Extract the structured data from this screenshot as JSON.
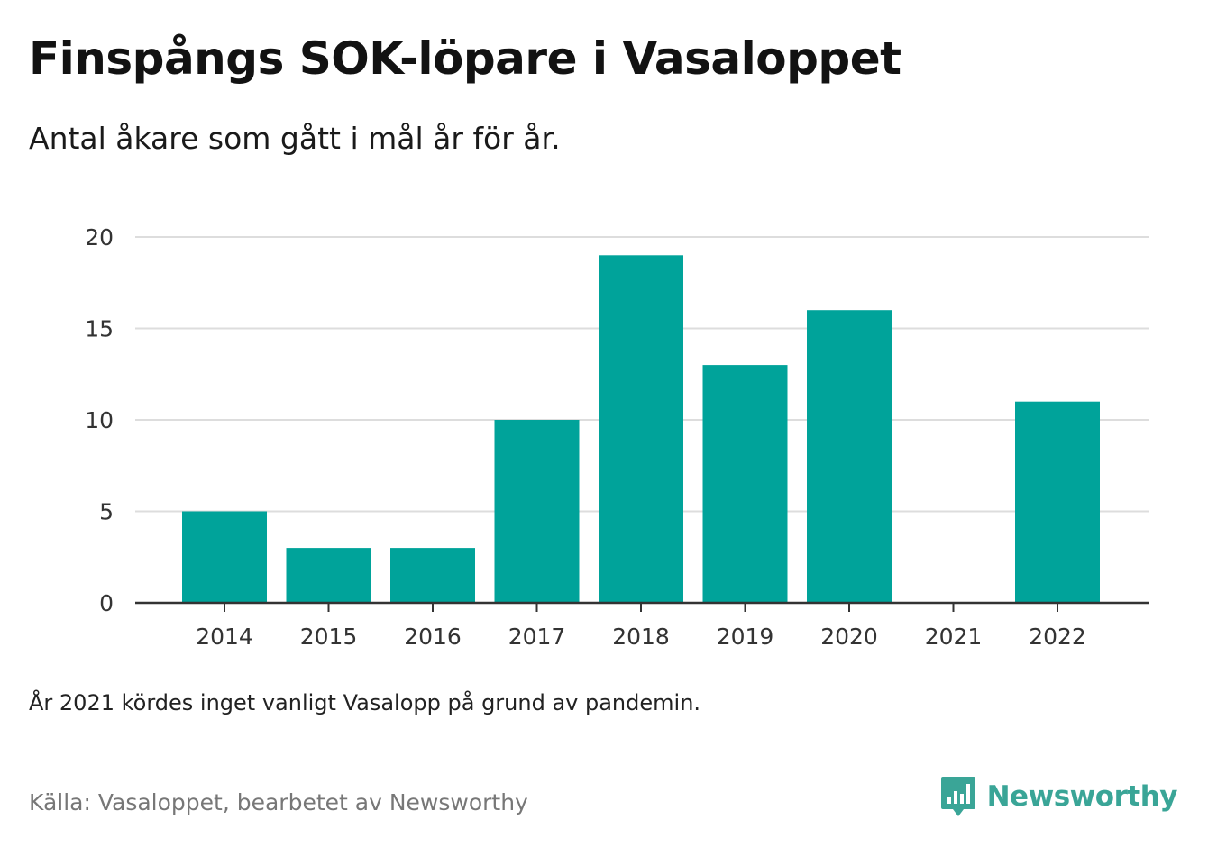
{
  "header": {
    "title": "Finspångs SOK-löpare i Vasaloppet",
    "subtitle": "Antal åkare som gått i mål år för år."
  },
  "footer": {
    "note": "År 2021 kördes inget vanligt Vasalopp på grund av pandemin.",
    "source": "Källa: Vasaloppet, bearbetet av Newsworthy",
    "brand": "Newsworthy",
    "brand_icon": "bar-chart-speech-bubble-icon"
  },
  "colors": {
    "bar": "#00a39a",
    "brand": "#3aa597",
    "grid": "#dddddd",
    "axis": "#333333",
    "tick_label": "#333333"
  },
  "chart_data": {
    "type": "bar",
    "categories": [
      "2014",
      "2015",
      "2016",
      "2017",
      "2018",
      "2019",
      "2020",
      "2021",
      "2022"
    ],
    "values": [
      5,
      3,
      3,
      10,
      19,
      13,
      16,
      0,
      11
    ],
    "ylim": [
      0,
      20
    ],
    "yticks": [
      0,
      5,
      10,
      15,
      20
    ],
    "grid": true,
    "legend": "none"
  }
}
